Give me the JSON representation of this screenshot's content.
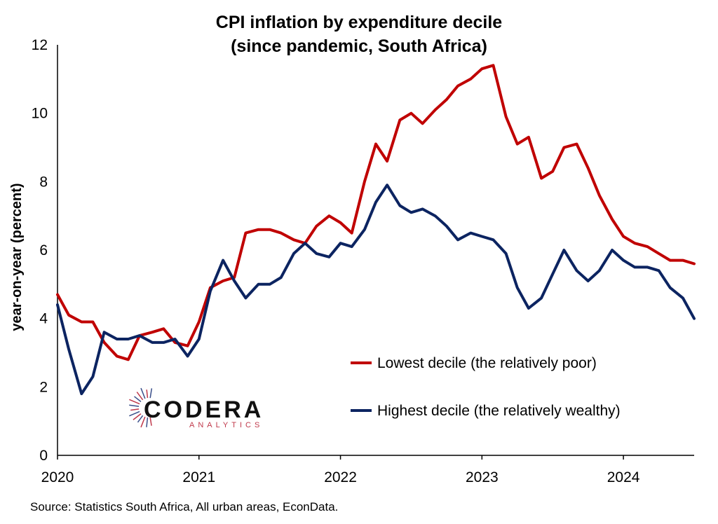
{
  "title_line1": "CPI inflation by expenditure decile",
  "title_line2": "(since pandemic, South Africa)",
  "source": "Source: Statistics South Africa, All urban areas, EconData.",
  "logo": {
    "word": "CODERA",
    "sub": "ANALYTICS"
  },
  "colors": {
    "lowest": "#c00000",
    "highest": "#0c2461",
    "logo_accent": "#c0394b"
  },
  "chart_data": {
    "type": "line",
    "ylabel": "year-on-year (percent)",
    "xlabel": "",
    "ylim": [
      0,
      12
    ],
    "yticks": [
      0,
      2,
      4,
      6,
      8,
      10,
      12
    ],
    "xlim": [
      2020.0,
      2024.5
    ],
    "xticks": [
      2020,
      2021,
      2022,
      2023,
      2024
    ],
    "x": [
      2020.0,
      2020.08,
      2020.17,
      2020.25,
      2020.33,
      2020.42,
      2020.5,
      2020.58,
      2020.67,
      2020.75,
      2020.83,
      2020.92,
      2021.0,
      2021.08,
      2021.17,
      2021.25,
      2021.33,
      2021.42,
      2021.5,
      2021.58,
      2021.67,
      2021.75,
      2021.83,
      2021.92,
      2022.0,
      2022.08,
      2022.17,
      2022.25,
      2022.33,
      2022.42,
      2022.5,
      2022.58,
      2022.67,
      2022.75,
      2022.83,
      2022.92,
      2023.0,
      2023.08,
      2023.17,
      2023.25,
      2023.33,
      2023.42,
      2023.5,
      2023.58,
      2023.67,
      2023.75,
      2023.83,
      2023.92,
      2024.0,
      2024.08,
      2024.17,
      2024.25,
      2024.33,
      2024.42,
      2024.5
    ],
    "series": [
      {
        "name": "Lowest decile (the relatively poor)",
        "color": "#c00000",
        "values": [
          4.7,
          4.1,
          3.9,
          3.9,
          3.3,
          2.9,
          2.8,
          3.5,
          3.6,
          3.7,
          3.3,
          3.2,
          3.9,
          4.9,
          5.1,
          5.2,
          6.5,
          6.6,
          6.6,
          6.5,
          6.3,
          6.2,
          6.7,
          7.0,
          6.8,
          6.5,
          8.0,
          9.1,
          8.6,
          9.8,
          10.0,
          9.7,
          10.1,
          10.4,
          10.8,
          11.0,
          11.3,
          11.4,
          9.9,
          9.1,
          9.3,
          8.1,
          8.3,
          9.0,
          9.1,
          8.4,
          7.6,
          6.9,
          6.4,
          6.2,
          6.1,
          5.9,
          5.7,
          5.7,
          5.6
        ]
      },
      {
        "name": "Highest decile (the relatively wealthy)",
        "color": "#0c2461",
        "values": [
          4.4,
          3.1,
          1.8,
          2.3,
          3.6,
          3.4,
          3.4,
          3.5,
          3.3,
          3.3,
          3.4,
          2.9,
          3.4,
          4.8,
          5.7,
          5.1,
          4.6,
          5.0,
          5.0,
          5.2,
          5.9,
          6.2,
          5.9,
          5.8,
          6.2,
          6.1,
          6.6,
          7.4,
          7.9,
          7.3,
          7.1,
          7.2,
          7.0,
          6.7,
          6.3,
          6.5,
          6.4,
          6.3,
          5.9,
          4.9,
          4.3,
          4.6,
          5.3,
          6.0,
          5.4,
          5.1,
          5.4,
          6.0,
          5.7,
          5.5,
          5.5,
          5.4,
          4.9,
          4.6,
          4.0
        ]
      }
    ],
    "legend_position": "lower-right",
    "grid": false
  }
}
